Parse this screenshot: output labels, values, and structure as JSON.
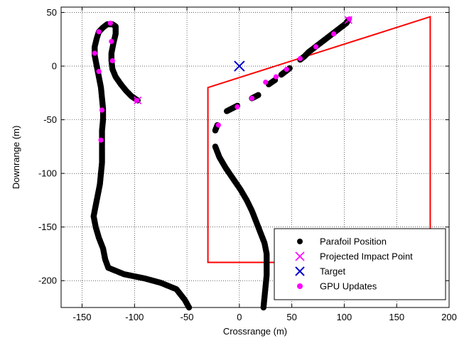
{
  "chart_data": {
    "type": "scatter",
    "xlabel": "Crossrange (m)",
    "ylabel": "Downrange (m)",
    "xlim": [
      -170,
      200
    ],
    "ylim": [
      -225,
      55
    ],
    "xticks": [
      -150,
      -100,
      -50,
      0,
      50,
      100,
      150,
      200
    ],
    "yticks": [
      50,
      0,
      -50,
      -100,
      -150,
      -200
    ],
    "grid": true,
    "legend_position": "bottom-right",
    "colors": {
      "parafoil": "#000000",
      "impact": "#ff00ff",
      "target": "#0000cc",
      "gpu": "#ff00ff",
      "zone": "#ff0000"
    },
    "series": [
      {
        "name": "Parafoil Position",
        "marker": "filled-circle",
        "paths": [
          [
            [
              -48,
              -225
            ],
            [
              -52,
              -218
            ],
            [
              -60,
              -208
            ],
            [
              -75,
              -202
            ],
            [
              -90,
              -198
            ],
            [
              -110,
              -194
            ],
            [
              -125,
              -188
            ],
            [
              -128,
              -180
            ],
            [
              -130,
              -170
            ],
            [
              -134,
              -160
            ],
            [
              -137,
              -150
            ],
            [
              -139,
              -140
            ],
            [
              -137,
              -130
            ],
            [
              -135,
              -120
            ],
            [
              -133,
              -110
            ],
            [
              -132,
              -100
            ],
            [
              -131,
              -90
            ],
            [
              -131,
              -80
            ],
            [
              -131,
              -70
            ],
            [
              -131,
              -60
            ],
            [
              -130,
              -50
            ],
            [
              -130,
              -40
            ],
            [
              -131,
              -30
            ],
            [
              -132,
              -20
            ],
            [
              -134,
              -10
            ],
            [
              -136,
              0
            ],
            [
              -138,
              10
            ],
            [
              -138,
              18
            ],
            [
              -136,
              26
            ],
            [
              -134,
              32
            ],
            [
              -130,
              36
            ],
            [
              -126,
              39
            ],
            [
              -121,
              39
            ],
            [
              -118,
              37
            ],
            [
              -118,
              30
            ],
            [
              -120,
              22
            ],
            [
              -122,
              12
            ],
            [
              -122,
              5
            ],
            [
              -121,
              -3
            ],
            [
              -118,
              -10
            ],
            [
              -113,
              -17
            ],
            [
              -108,
              -23
            ],
            [
              -103,
              -28
            ],
            [
              -97,
              -32
            ]
          ],
          [
            [
              23,
              -225
            ],
            [
              24,
              -215
            ],
            [
              25,
              -205
            ],
            [
              26,
              -195
            ],
            [
              26,
              -185
            ],
            [
              26,
              -175
            ],
            [
              24,
              -165
            ],
            [
              20,
              -155
            ],
            [
              16,
              -145
            ],
            [
              12,
              -135
            ],
            [
              7,
              -125
            ],
            [
              1,
              -115
            ],
            [
              -6,
              -105
            ],
            [
              -13,
              -95
            ],
            [
              -19,
              -85
            ],
            [
              -23,
              -75
            ]
          ],
          [
            [
              -23,
              -60
            ],
            [
              -21,
              -55
            ]
          ],
          [
            [
              -12,
              -42
            ],
            [
              -2,
              -37
            ]
          ],
          [
            [
              12,
              -30
            ],
            [
              18,
              -27
            ]
          ],
          [
            [
              28,
              -17
            ],
            [
              34,
              -13
            ]
          ],
          [
            [
              40,
              -8
            ],
            [
              48,
              -2
            ]
          ],
          [
            [
              58,
              6
            ],
            [
              62,
              9
            ],
            [
              66,
              13
            ],
            [
              70,
              16
            ],
            [
              74,
              19
            ],
            [
              78,
              22
            ],
            [
              82,
              25
            ],
            [
              86,
              28
            ],
            [
              90,
              31
            ],
            [
              94,
              34
            ],
            [
              98,
              37
            ],
            [
              102,
              40
            ],
            [
              104,
              43
            ]
          ]
        ]
      },
      {
        "name": "Projected Impact Point",
        "marker": "x",
        "points": [
          [
            -97,
            -32
          ],
          [
            104,
            43
          ]
        ]
      },
      {
        "name": "Target",
        "marker": "x",
        "points": [
          [
            0,
            0
          ]
        ]
      },
      {
        "name": "GPU Updates",
        "marker": "filled-circle",
        "points": [
          [
            -123,
            40
          ],
          [
            -134,
            32
          ],
          [
            -122,
            23
          ],
          [
            -138,
            12
          ],
          [
            -121,
            5
          ],
          [
            -134,
            -5
          ],
          [
            -131,
            -41
          ],
          [
            -132,
            -69
          ],
          [
            -98,
            -32
          ],
          [
            -20,
            -55
          ],
          [
            -2,
            -38
          ],
          [
            12,
            -30
          ],
          [
            25,
            -15
          ],
          [
            35,
            -10
          ],
          [
            45,
            -3
          ],
          [
            58,
            7
          ],
          [
            73,
            18
          ],
          [
            90,
            30
          ],
          [
            105,
            44
          ]
        ]
      }
    ],
    "region": {
      "name": "",
      "type": "polygon",
      "points": [
        [
          -30,
          -20
        ],
        [
          182,
          46
        ],
        [
          182,
          -183
        ],
        [
          -30,
          -183
        ]
      ]
    }
  }
}
